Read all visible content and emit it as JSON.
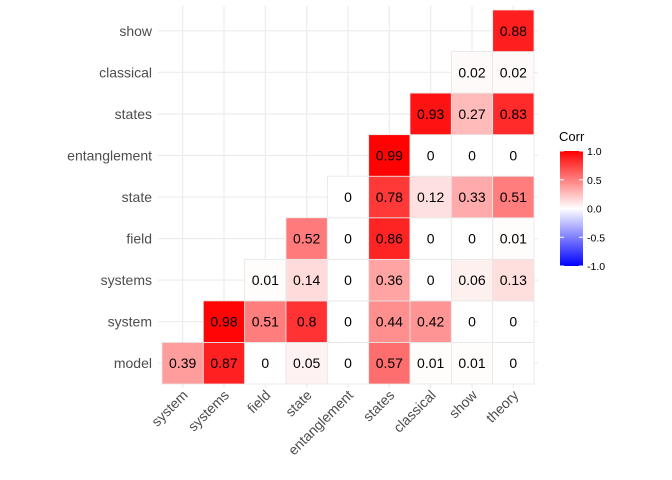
{
  "chart_data": {
    "type": "heatmap",
    "x_categories": [
      "system",
      "systems",
      "field",
      "state",
      "entanglement",
      "states",
      "classical",
      "show",
      "theory"
    ],
    "y_categories": [
      "model",
      "system",
      "systems",
      "field",
      "state",
      "entanglement",
      "states",
      "classical",
      "show"
    ],
    "cells": [
      {
        "x": "system",
        "y": "model",
        "value": 0.39
      },
      {
        "x": "systems",
        "y": "model",
        "value": 0.87
      },
      {
        "x": "systems",
        "y": "system",
        "value": 0.98
      },
      {
        "x": "field",
        "y": "model",
        "value": 0
      },
      {
        "x": "field",
        "y": "system",
        "value": 0.51
      },
      {
        "x": "field",
        "y": "systems",
        "value": 0.01
      },
      {
        "x": "state",
        "y": "model",
        "value": 0.05
      },
      {
        "x": "state",
        "y": "system",
        "value": 0.8
      },
      {
        "x": "state",
        "y": "systems",
        "value": 0.14
      },
      {
        "x": "state",
        "y": "field",
        "value": 0.52
      },
      {
        "x": "entanglement",
        "y": "model",
        "value": 0
      },
      {
        "x": "entanglement",
        "y": "system",
        "value": 0
      },
      {
        "x": "entanglement",
        "y": "systems",
        "value": 0
      },
      {
        "x": "entanglement",
        "y": "field",
        "value": 0
      },
      {
        "x": "entanglement",
        "y": "state",
        "value": 0
      },
      {
        "x": "states",
        "y": "model",
        "value": 0.57
      },
      {
        "x": "states",
        "y": "system",
        "value": 0.44
      },
      {
        "x": "states",
        "y": "systems",
        "value": 0.36
      },
      {
        "x": "states",
        "y": "field",
        "value": 0.86
      },
      {
        "x": "states",
        "y": "state",
        "value": 0.78
      },
      {
        "x": "states",
        "y": "entanglement",
        "value": 0.99
      },
      {
        "x": "classical",
        "y": "model",
        "value": 0.01
      },
      {
        "x": "classical",
        "y": "system",
        "value": 0.42
      },
      {
        "x": "classical",
        "y": "systems",
        "value": 0
      },
      {
        "x": "classical",
        "y": "field",
        "value": 0
      },
      {
        "x": "classical",
        "y": "state",
        "value": 0.12
      },
      {
        "x": "classical",
        "y": "entanglement",
        "value": 0
      },
      {
        "x": "classical",
        "y": "states",
        "value": 0.93
      },
      {
        "x": "show",
        "y": "model",
        "value": 0.01
      },
      {
        "x": "show",
        "y": "system",
        "value": 0
      },
      {
        "x": "show",
        "y": "systems",
        "value": 0.06
      },
      {
        "x": "show",
        "y": "field",
        "value": 0
      },
      {
        "x": "show",
        "y": "state",
        "value": 0.33
      },
      {
        "x": "show",
        "y": "entanglement",
        "value": 0
      },
      {
        "x": "show",
        "y": "states",
        "value": 0.27
      },
      {
        "x": "show",
        "y": "classical",
        "value": 0.02
      },
      {
        "x": "theory",
        "y": "model",
        "value": 0
      },
      {
        "x": "theory",
        "y": "system",
        "value": 0
      },
      {
        "x": "theory",
        "y": "systems",
        "value": 0.13
      },
      {
        "x": "theory",
        "y": "field",
        "value": 0.01
      },
      {
        "x": "theory",
        "y": "state",
        "value": 0.51
      },
      {
        "x": "theory",
        "y": "entanglement",
        "value": 0
      },
      {
        "x": "theory",
        "y": "states",
        "value": 0.83
      },
      {
        "x": "theory",
        "y": "classical",
        "value": 0.02
      },
      {
        "x": "theory",
        "y": "show",
        "value": 0.88
      }
    ],
    "legend": {
      "title": "Corr",
      "position": "right",
      "range": [
        -1,
        1
      ],
      "ticks": [
        "1.0",
        "0.5",
        "0.0",
        "-0.5",
        "-1.0"
      ],
      "low_color": "#0000ff",
      "mid_color": "#ffffff",
      "high_color": "#ff0000"
    },
    "grid": true,
    "xlabel": "",
    "ylabel": ""
  }
}
